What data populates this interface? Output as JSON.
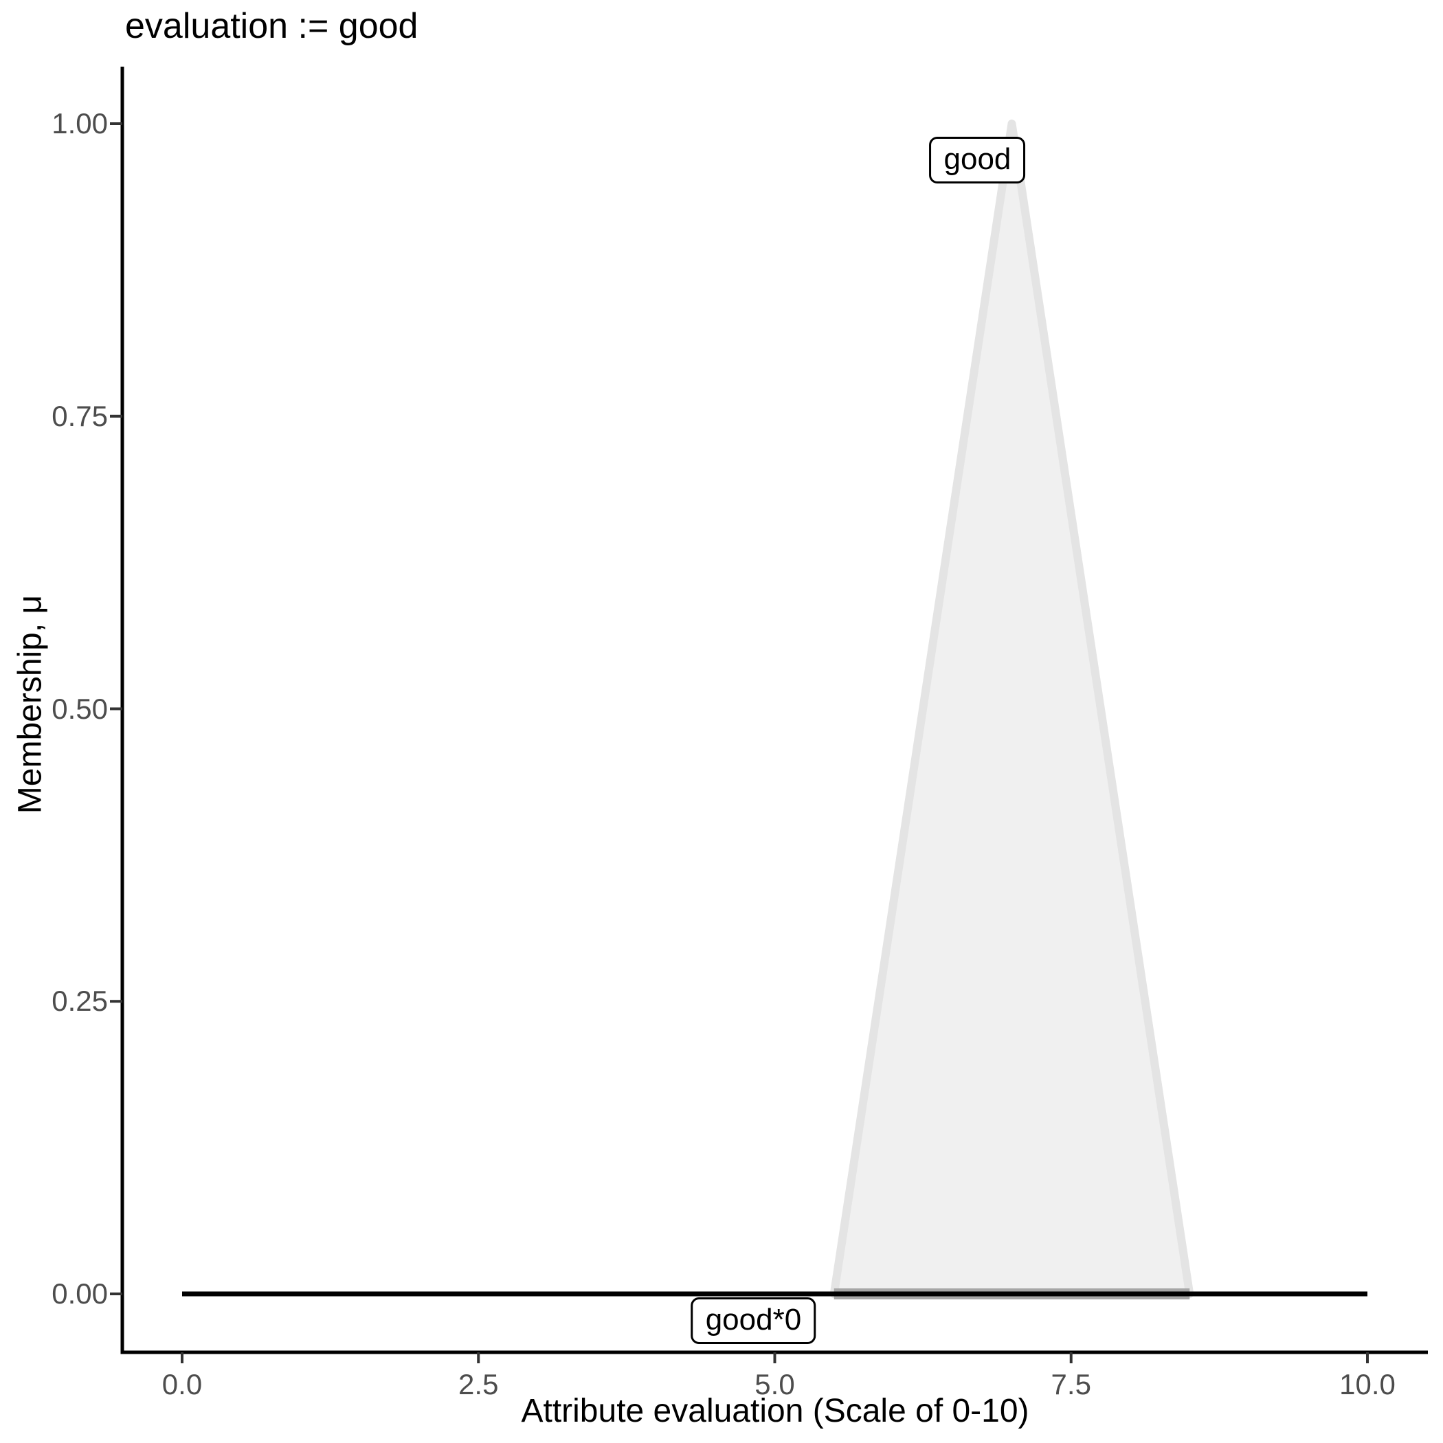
{
  "chart_data": {
    "type": "area",
    "title": "evaluation := good",
    "xlabel": "Attribute evaluation (Scale of 0-10)",
    "ylabel": "Membership, μ",
    "xlim": [
      0,
      10
    ],
    "ylim": [
      0,
      1
    ],
    "grid": false,
    "background_color": "#ffffff",
    "axis_line_color": "#000000",
    "tick_mark_color": "#333333",
    "tick_label_color": "#4d4d4d",
    "x_ticks": {
      "values": [
        0,
        2.5,
        5,
        7.5,
        10
      ],
      "labels": [
        "0.0",
        "2.5",
        "5.0",
        "7.5",
        "10.0"
      ]
    },
    "y_ticks": {
      "values": [
        0,
        0.25,
        0.5,
        0.75,
        1
      ],
      "labels": [
        "0.00",
        "0.25",
        "0.50",
        "0.75",
        "1.00"
      ]
    },
    "series": [
      {
        "name": "good",
        "kind": "triangular-membership-function",
        "points": [
          [
            5.5,
            0
          ],
          [
            7,
            1
          ],
          [
            8.5,
            0
          ]
        ],
        "fill": "#f0f0f0",
        "stroke": "#e4e4e4",
        "stroke_width_px": 12,
        "label": {
          "text": "good",
          "x": 6.71,
          "y": 0.969
        }
      },
      {
        "name": "good-baseline-residual",
        "kind": "line",
        "points": [
          [
            5.5,
            0
          ],
          [
            8.5,
            0
          ]
        ],
        "stroke": "#a6a6a6",
        "stroke_width_px": 16
      },
      {
        "name": "good*0",
        "kind": "scaled-membership-function",
        "points": [
          [
            0,
            0
          ],
          [
            10,
            0
          ]
        ],
        "stroke": "#000000",
        "stroke_width_px": 7,
        "label": {
          "text": "good*0",
          "x": 4.82,
          "y": -0.023
        }
      }
    ]
  }
}
